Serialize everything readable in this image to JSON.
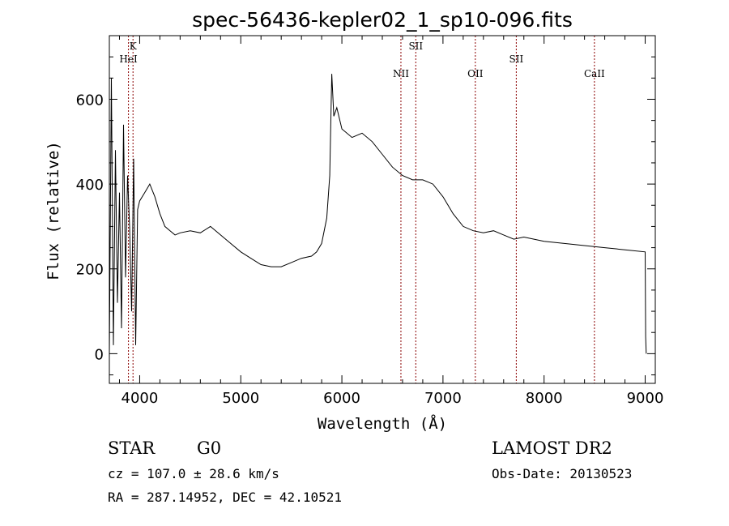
{
  "chart_data": {
    "type": "line",
    "title": "spec-56436-kepler02_1_sp10-096.fits",
    "xlabel": "Wavelength (Å)",
    "ylabel": "Flux (relative)",
    "xlim": [
      3700,
      9100
    ],
    "ylim": [
      -70,
      750
    ],
    "xticks": [
      4000,
      5000,
      6000,
      7000,
      8000,
      9000
    ],
    "yticks": [
      0,
      200,
      400,
      600
    ],
    "grid": false,
    "line_color": "#000000",
    "marker_color": "#8b0000",
    "lines": [
      {
        "label": "K",
        "wavelength": 3934,
        "row": 1
      },
      {
        "label": "HeI",
        "wavelength": 3889,
        "row": 2
      },
      {
        "label": "SII",
        "wavelength": 6731,
        "row": 1
      },
      {
        "label": "NII",
        "wavelength": 6584,
        "row": 3
      },
      {
        "label": "OII",
        "wavelength": 7320,
        "row": 3
      },
      {
        "label": "SII",
        "wavelength": 7725,
        "row": 2
      },
      {
        "label": "CaII",
        "wavelength": 8498,
        "row": 3
      }
    ],
    "series": [
      {
        "x": [
          3700,
          3720,
          3740,
          3760,
          3780,
          3800,
          3820,
          3840,
          3860,
          3880,
          3900,
          3920,
          3940,
          3960,
          3980,
          4000,
          4050,
          4100,
          4150,
          4200,
          4250,
          4300,
          4350,
          4400,
          4500,
          4600,
          4700,
          4800,
          4900,
          5000,
          5100,
          5200,
          5300,
          5400,
          5500,
          5600,
          5700,
          5750,
          5800,
          5850,
          5880,
          5900,
          5920,
          5950,
          6000,
          6100,
          6200,
          6300,
          6400,
          6500,
          6600,
          6700,
          6800,
          6900,
          7000,
          7100,
          7200,
          7300,
          7400,
          7500,
          7600,
          7700,
          7800,
          7900,
          8000,
          8200,
          8400,
          8600,
          8800,
          9000,
          9005,
          9010
        ],
        "y": [
          0,
          650,
          20,
          480,
          120,
          380,
          60,
          540,
          180,
          420,
          300,
          100,
          460,
          20,
          340,
          360,
          380,
          400,
          370,
          330,
          300,
          290,
          280,
          285,
          290,
          285,
          300,
          280,
          260,
          240,
          225,
          210,
          205,
          205,
          215,
          225,
          230,
          240,
          260,
          320,
          420,
          660,
          560,
          580,
          530,
          510,
          520,
          500,
          470,
          440,
          420,
          410,
          410,
          400,
          370,
          330,
          300,
          290,
          285,
          290,
          280,
          270,
          275,
          270,
          265,
          260,
          255,
          250,
          245,
          240,
          40,
          0
        ]
      }
    ]
  },
  "info": {
    "object_class": "STAR",
    "subclass": "G0",
    "survey": "LAMOST DR2",
    "redshift": "cz = 107.0 ± 28.6 km/s",
    "obs_date": "Obs-Date: 20130523",
    "coords": "RA = 287.14952, DEC =  42.10521"
  }
}
